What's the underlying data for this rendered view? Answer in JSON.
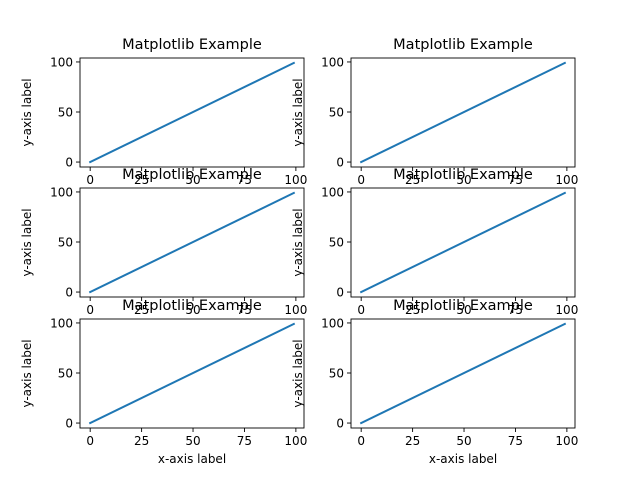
{
  "line_color": "#1f77b4",
  "chart_data": [
    {
      "type": "line",
      "title": "Matplotlib Example",
      "xlabel": "",
      "ylabel": "y-axis label",
      "x": [
        0,
        99
      ],
      "y": [
        0,
        99
      ],
      "xlim": [
        -4.95,
        103.95
      ],
      "ylim": [
        -4.95,
        103.95
      ],
      "xticks": [
        0,
        25,
        50,
        75,
        100
      ],
      "yticks": [
        0,
        50,
        100
      ],
      "grid": false,
      "legend": "none"
    },
    {
      "type": "line",
      "title": "Matplotlib Example",
      "xlabel": "",
      "ylabel": "y-axis label",
      "x": [
        0,
        99
      ],
      "y": [
        0,
        99
      ],
      "xlim": [
        -4.95,
        103.95
      ],
      "ylim": [
        -4.95,
        103.95
      ],
      "xticks": [
        0,
        25,
        50,
        75,
        100
      ],
      "yticks": [
        0,
        50,
        100
      ],
      "grid": false,
      "legend": "none"
    },
    {
      "type": "line",
      "title": "Matplotlib Example",
      "xlabel": "",
      "ylabel": "y-axis label",
      "x": [
        0,
        99
      ],
      "y": [
        0,
        99
      ],
      "xlim": [
        -4.95,
        103.95
      ],
      "ylim": [
        -4.95,
        103.95
      ],
      "xticks": [
        0,
        25,
        50,
        75,
        100
      ],
      "yticks": [
        0,
        50,
        100
      ],
      "grid": false,
      "legend": "none"
    },
    {
      "type": "line",
      "title": "Matplotlib Example",
      "xlabel": "",
      "ylabel": "y-axis label",
      "x": [
        0,
        99
      ],
      "y": [
        0,
        99
      ],
      "xlim": [
        -4.95,
        103.95
      ],
      "ylim": [
        -4.95,
        103.95
      ],
      "xticks": [
        0,
        25,
        50,
        75,
        100
      ],
      "yticks": [
        0,
        50,
        100
      ],
      "grid": false,
      "legend": "none"
    },
    {
      "type": "line",
      "title": "Matplotlib Example",
      "xlabel": "x-axis label",
      "ylabel": "y-axis label",
      "x": [
        0,
        99
      ],
      "y": [
        0,
        99
      ],
      "xlim": [
        -4.95,
        103.95
      ],
      "ylim": [
        -4.95,
        103.95
      ],
      "xticks": [
        0,
        25,
        50,
        75,
        100
      ],
      "yticks": [
        0,
        50,
        100
      ],
      "grid": false,
      "legend": "none"
    },
    {
      "type": "line",
      "title": "Matplotlib Example",
      "xlabel": "x-axis label",
      "ylabel": "y-axis label",
      "x": [
        0,
        99
      ],
      "y": [
        0,
        99
      ],
      "xlim": [
        -4.95,
        103.95
      ],
      "ylim": [
        -4.95,
        103.95
      ],
      "xticks": [
        0,
        25,
        50,
        75,
        100
      ],
      "yticks": [
        0,
        50,
        100
      ],
      "grid": false,
      "legend": "none"
    }
  ]
}
